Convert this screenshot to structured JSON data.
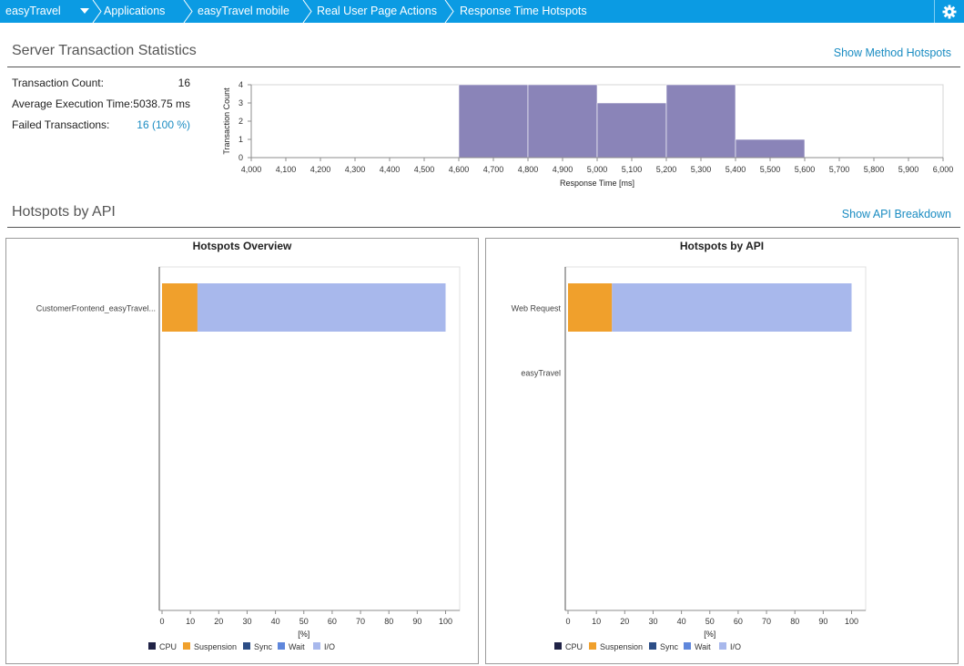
{
  "breadcrumb": {
    "items": [
      "easyTravel",
      "Applications",
      "easyTravel mobile",
      "Real User Page Actions",
      "Response Time Hotspots"
    ]
  },
  "icons": {
    "dropdown": "chevron-down-icon",
    "settings": "gear-icon"
  },
  "colors": {
    "header_bg": "#0b9be3",
    "link": "#1a8cc2",
    "histogram_bar": "#8a84b8",
    "cpu": "#202346",
    "suspension": "#f0a02c",
    "sync": "#2c4d86",
    "wait": "#5f87dc",
    "io": "#a8b8ec"
  },
  "server_stats": {
    "title": "Server Transaction Statistics",
    "link": "Show Method Hotspots",
    "rows": [
      {
        "label": "Transaction Count:",
        "value": "16"
      },
      {
        "label": "Average Execution Time:",
        "value": "5038.75 ms"
      },
      {
        "label": "Failed Transactions:",
        "value": "16 (100 %)"
      }
    ]
  },
  "histogram": {
    "type": "bar",
    "xlabel": "Response Time [ms]",
    "ylabel": "Transaction Count",
    "xlim": [
      4000,
      6000
    ],
    "ylim": [
      0,
      4
    ],
    "x_ticks": [
      "4,000",
      "4,100",
      "4,200",
      "4,300",
      "4,400",
      "4,500",
      "4,600",
      "4,700",
      "4,800",
      "4,900",
      "5,000",
      "5,100",
      "5,200",
      "5,300",
      "5,400",
      "5,500",
      "5,600",
      "5,700",
      "5,800",
      "5,900",
      "6,000"
    ],
    "y_ticks": [
      "0",
      "1",
      "2",
      "3",
      "4"
    ],
    "bins": [
      {
        "from": 4600,
        "to": 4800,
        "count": 4
      },
      {
        "from": 4800,
        "to": 5000,
        "count": 4
      },
      {
        "from": 5000,
        "to": 5200,
        "count": 3
      },
      {
        "from": 5200,
        "to": 5400,
        "count": 4
      },
      {
        "from": 5400,
        "to": 5600,
        "count": 1
      }
    ]
  },
  "hotspots_section": {
    "title": "Hotspots by API",
    "link": "Show API Breakdown"
  },
  "chart_data": [
    {
      "type": "bar",
      "orientation": "horizontal-stacked",
      "title": "Hotspots Overview",
      "categories": [
        "CustomerFrontend_easyTravel..."
      ],
      "xlabel": "[%]",
      "xlim": [
        0,
        100
      ],
      "x_ticks": [
        "0",
        "10",
        "20",
        "30",
        "40",
        "50",
        "60",
        "70",
        "80",
        "90",
        "100"
      ],
      "series": [
        {
          "name": "CPU",
          "values": [
            0
          ]
        },
        {
          "name": "Suspension",
          "values": [
            12.5
          ]
        },
        {
          "name": "Sync",
          "values": [
            0
          ]
        },
        {
          "name": "Wait",
          "values": [
            0
          ]
        },
        {
          "name": "I/O",
          "values": [
            87.5
          ]
        }
      ],
      "legend": [
        "CPU",
        "Suspension",
        "Sync",
        "Wait",
        "I/O"
      ]
    },
    {
      "type": "bar",
      "orientation": "horizontal-stacked",
      "title": "Hotspots by API",
      "categories": [
        "Web Request",
        "easyTravel"
      ],
      "xlabel": "[%]",
      "xlim": [
        0,
        100
      ],
      "x_ticks": [
        "0",
        "10",
        "20",
        "30",
        "40",
        "50",
        "60",
        "70",
        "80",
        "90",
        "100"
      ],
      "series": [
        {
          "name": "CPU",
          "values": [
            0,
            0
          ]
        },
        {
          "name": "Suspension",
          "values": [
            15.5,
            0
          ]
        },
        {
          "name": "Sync",
          "values": [
            0,
            0
          ]
        },
        {
          "name": "Wait",
          "values": [
            0,
            0
          ]
        },
        {
          "name": "I/O",
          "values": [
            84.5,
            0
          ]
        }
      ],
      "legend": [
        "CPU",
        "Suspension",
        "Sync",
        "Wait",
        "I/O"
      ]
    }
  ]
}
